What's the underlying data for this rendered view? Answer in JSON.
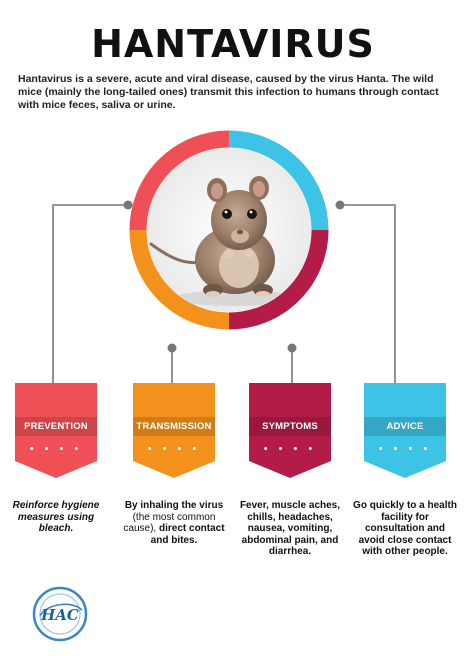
{
  "header": {
    "title": "HANTAVIRUS",
    "intro": "Hantavirus is a severe,  acute and viral disease, caused by the virus Hanta. The wild mice (mainly the long-tailed ones) transmit this infection to humans through contact with mice feces, saliva or urine."
  },
  "colors": {
    "prevention": "#ef5055",
    "transmission": "#f2921c",
    "symptoms": "#b31c47",
    "advice": "#3cc3e6",
    "connector": "#777777"
  },
  "cards": [
    {
      "label": "PREVENTION",
      "dots": "• • • •",
      "text_bold": "Reinforce hygiene measures using bleach.",
      "text_normal": "",
      "text_bold_2": ""
    },
    {
      "label": "TRANSMISSION",
      "dots": "• • • •",
      "text_bold": "By inhaling the virus",
      "text_normal": "(the most common cause),",
      "text_bold_2": "direct contact and bites."
    },
    {
      "label": "SYMPTOMS",
      "dots": "• • • •",
      "text_bold": "Fever, muscle aches, chills, headaches, nausea, vomiting, abdominal pain, and diarrhea.",
      "text_normal": "",
      "text_bold_2": ""
    },
    {
      "label": "ADVICE",
      "dots": "• • • •",
      "text_bold": "Go quickly to a health facility for consultation and avoid close contact with other people.",
      "text_normal": "",
      "text_bold_2": ""
    }
  ],
  "logo": {
    "text": "HAC"
  }
}
